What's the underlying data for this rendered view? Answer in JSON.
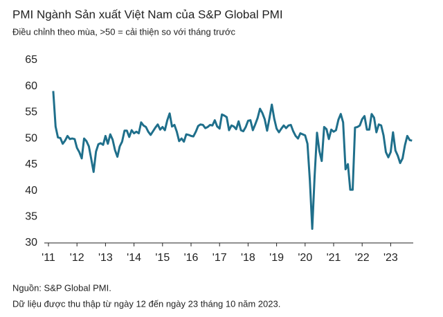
{
  "chart_data": {
    "type": "line",
    "title": "PMI Ngành Sản xuất Việt Nam của S&P Global PMI",
    "subtitle": "Điều chỉnh theo mùa, >50 = cải thiện so với tháng trước",
    "source": "Nguồn: S&P Global PMI.",
    "note": "Dữ liệu được thu thập từ ngày 12 đến ngày 23 tháng 10 năm 2023.",
    "categories": [
      "'11",
      null,
      null,
      null,
      null,
      null,
      null,
      null,
      null,
      null,
      null,
      null,
      "'12",
      null,
      null,
      null,
      null,
      null,
      null,
      null,
      null,
      null,
      null,
      null,
      "'13",
      null,
      null,
      null,
      null,
      null,
      null,
      null,
      null,
      null,
      null,
      null,
      "'14",
      null,
      null,
      null,
      null,
      null,
      null,
      null,
      null,
      null,
      null,
      null,
      "'15",
      null,
      null,
      null,
      null,
      null,
      null,
      null,
      null,
      null,
      null,
      null,
      "'16",
      null,
      null,
      null,
      null,
      null,
      null,
      null,
      null,
      null,
      null,
      null,
      "'17",
      null,
      null,
      null,
      null,
      null,
      null,
      null,
      null,
      null,
      null,
      null,
      "'18",
      null,
      null,
      null,
      null,
      null,
      null,
      null,
      null,
      null,
      null,
      null,
      "'19",
      null,
      null,
      null,
      null,
      null,
      null,
      null,
      null,
      null,
      null,
      null,
      "'20",
      null,
      null,
      null,
      null,
      null,
      null,
      null,
      null,
      null,
      null,
      null,
      "'21",
      null,
      null,
      null,
      null,
      null,
      null,
      null,
      null,
      null,
      null,
      null,
      "'22",
      null,
      null,
      null,
      null,
      null,
      null,
      null,
      null,
      null,
      null,
      null,
      "'23",
      null,
      null,
      null,
      null,
      null,
      null,
      null,
      null,
      null
    ],
    "series": [
      {
        "color": "#1f6f8b",
        "values": [
          null,
          null,
          59.1,
          52.3,
          50.2,
          50.1,
          49.0,
          49.6,
          50.5,
          49.9,
          50.0,
          49.9,
          48.2,
          47.4,
          46.2,
          50.0,
          49.5,
          48.5,
          46.1,
          43.6,
          47.5,
          48.9,
          49.1,
          48.8,
          50.5,
          49.0,
          50.8,
          49.8,
          47.8,
          46.5,
          48.5,
          49.4,
          51.5,
          51.5,
          50.3,
          51.6,
          51.0,
          51.3,
          51.0,
          53.1,
          52.5,
          52.2,
          51.3,
          50.7,
          51.4,
          52.1,
          52.7,
          51.7,
          52.2,
          51.6,
          53.5,
          54.8,
          52.3,
          52.6,
          51.3,
          49.5,
          50.0,
          49.4,
          50.8,
          50.7,
          50.5,
          50.4,
          51.3,
          52.4,
          52.7,
          52.6,
          52.0,
          52.2,
          52.6,
          52.5,
          53.5,
          52.3,
          51.9,
          54.6,
          54.4,
          54.1,
          51.6,
          52.5,
          52.3,
          51.8,
          53.3,
          51.6,
          51.4,
          52.2,
          53.4,
          53.5,
          51.6,
          52.7,
          53.9,
          55.7,
          54.9,
          53.7,
          51.5,
          53.9,
          56.5,
          53.8,
          51.9,
          51.2,
          51.9,
          52.5,
          52.0,
          52.5,
          52.6,
          51.4,
          50.5,
          50.0,
          51.0,
          50.8,
          50.6,
          49.0,
          41.9,
          32.7,
          42.7,
          51.1,
          47.6,
          45.7,
          52.2,
          51.8,
          49.9,
          51.7,
          51.3,
          51.6,
          53.6,
          54.7,
          53.1,
          44.1,
          45.1,
          40.2,
          40.2,
          52.1,
          52.2,
          52.5,
          53.7,
          54.3,
          51.7,
          51.7,
          54.7,
          54.0,
          51.2,
          52.7,
          52.5,
          50.6,
          47.4,
          46.4,
          47.4,
          51.2,
          47.7,
          46.7,
          45.3,
          46.2,
          48.7,
          50.5,
          49.7,
          49.6
        ]
      }
    ],
    "ylim": [
      30,
      65
    ],
    "yticks": [
      30,
      35,
      40,
      45,
      50,
      55,
      60,
      65
    ]
  }
}
